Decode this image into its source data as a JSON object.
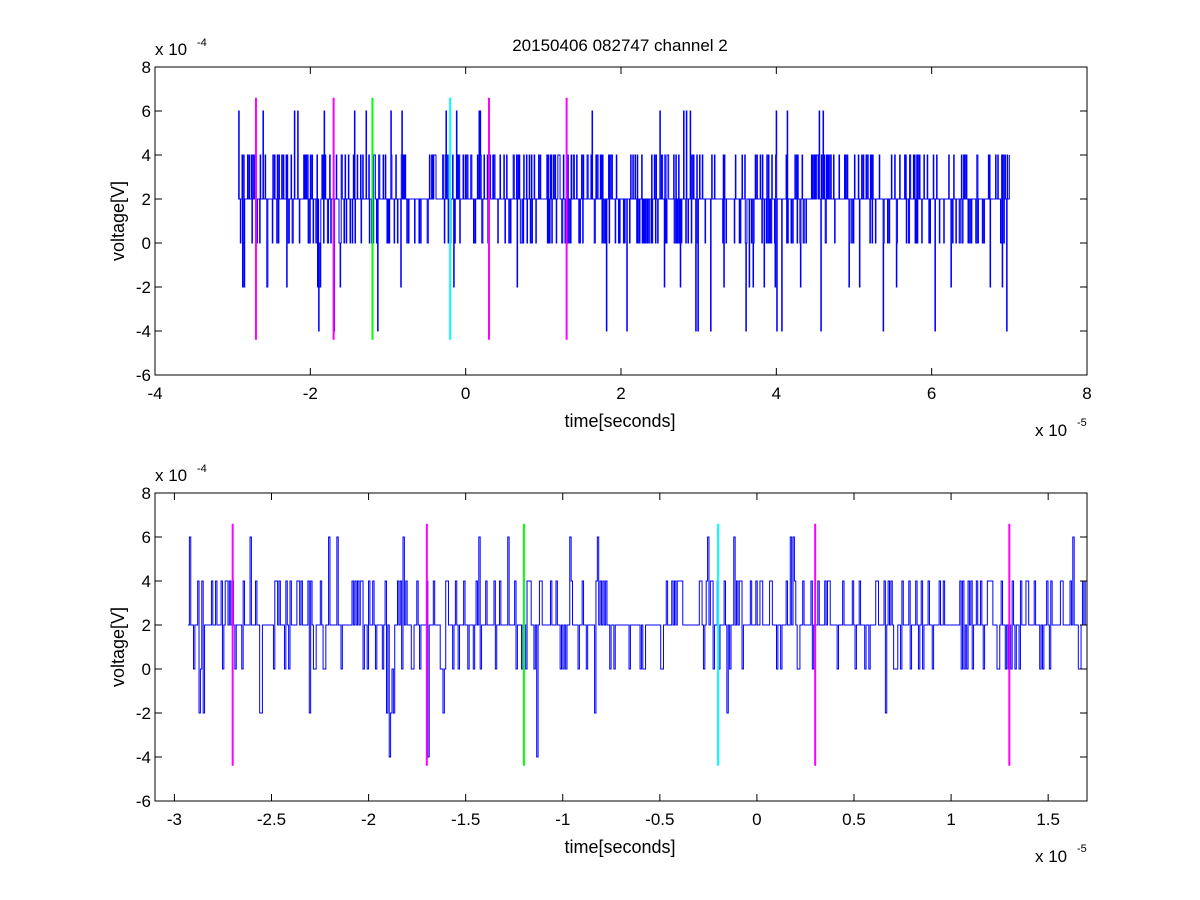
{
  "figure": {
    "title": "20150406 082747 channel 2"
  },
  "colors": {
    "signal": "#0000ff",
    "magenta": "#ff00ff",
    "green": "#00ff00",
    "cyan": "#00ffff",
    "axes": "#000000"
  },
  "chart_data": [
    {
      "type": "line",
      "title": "20150406 082747 channel 2",
      "xlabel": "time[seconds]",
      "ylabel": "voltage[V]",
      "x_multiplier": "x 10",
      "x_exponent": "-5",
      "y_multiplier": "x 10",
      "y_exponent": "-4",
      "xlim": [
        -4e-05,
        8e-05
      ],
      "ylim": [
        -0.0006,
        0.0008
      ],
      "xticks": [
        "-4",
        "-2",
        "0",
        "2",
        "4",
        "6",
        "8"
      ],
      "yticks": [
        "-6",
        "-4",
        "-2",
        "0",
        "2",
        "4",
        "6",
        "8"
      ],
      "grid": false,
      "series": [
        {
          "x_start": -2.93e-05,
          "x_end": 7e-05,
          "baseline": 0.0002,
          "min": -0.0004,
          "max": 0.0006,
          "step": 0.0002
        }
      ],
      "markers": [
        {
          "x": -2.7e-05,
          "color": "magenta",
          "y_range": [
            -0.00044,
            0.00066
          ]
        },
        {
          "x": -1.7e-05,
          "color": "magenta",
          "y_range": [
            -0.00044,
            0.00066
          ]
        },
        {
          "x": -1.2e-05,
          "color": "green",
          "y_range": [
            -0.00044,
            0.00066
          ]
        },
        {
          "x": -2e-06,
          "color": "cyan",
          "y_range": [
            -0.00044,
            0.00066
          ]
        },
        {
          "x": 3e-06,
          "color": "magenta",
          "y_range": [
            -0.00044,
            0.00066
          ]
        },
        {
          "x": 1.3e-05,
          "color": "magenta",
          "y_range": [
            -0.00044,
            0.00066
          ]
        }
      ]
    },
    {
      "type": "line",
      "xlabel": "time[seconds]",
      "ylabel": "voltage[V]",
      "x_multiplier": "x 10",
      "x_exponent": "-5",
      "y_multiplier": "x 10",
      "y_exponent": "-4",
      "xlim": [
        -3.1e-05,
        1.7e-05
      ],
      "ylim": [
        -0.0006,
        0.0008
      ],
      "xticks": [
        "-3",
        "-2.5",
        "-2",
        "-1.5",
        "-1",
        "-0.5",
        "0",
        "0.5",
        "1",
        "1.5"
      ],
      "xtick_values": [
        -3e-05,
        -2.5e-05,
        -2e-05,
        -1.5e-05,
        -1e-05,
        -5e-06,
        0,
        5e-06,
        1e-05,
        1.5e-05
      ],
      "yticks": [
        "-6",
        "-4",
        "-2",
        "0",
        "2",
        "4",
        "6",
        "8"
      ],
      "grid": false,
      "series": [
        {
          "x_start": -2.93e-05,
          "x_end": 1.7e-05,
          "baseline": 0.0002,
          "min": -0.0004,
          "max": 0.0006,
          "step": 0.0002
        }
      ],
      "markers": [
        {
          "x": -2.7e-05,
          "color": "magenta",
          "y_range": [
            -0.00044,
            0.00066
          ]
        },
        {
          "x": -1.7e-05,
          "color": "magenta",
          "y_range": [
            -0.00044,
            0.00066
          ]
        },
        {
          "x": -1.2e-05,
          "color": "green",
          "y_range": [
            -0.00044,
            0.00066
          ]
        },
        {
          "x": -2e-06,
          "color": "cyan",
          "y_range": [
            -0.00044,
            0.00066
          ]
        },
        {
          "x": 3e-06,
          "color": "magenta",
          "y_range": [
            -0.00044,
            0.00066
          ]
        },
        {
          "x": 1.3e-05,
          "color": "magenta",
          "y_range": [
            -0.00044,
            0.00066
          ]
        }
      ]
    }
  ]
}
